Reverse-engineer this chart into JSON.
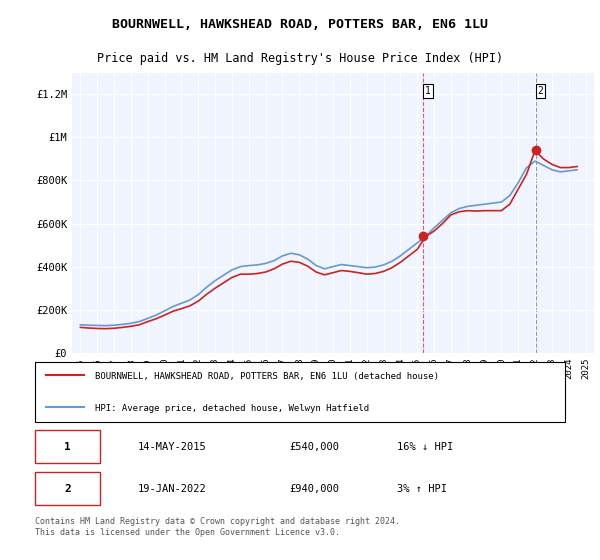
{
  "title": "BOURNWELL, HAWKSHEAD ROAD, POTTERS BAR, EN6 1LU",
  "subtitle": "Price paid vs. HM Land Registry's House Price Index (HPI)",
  "legend_line1": "BOURNWELL, HAWKSHEAD ROAD, POTTERS BAR, EN6 1LU (detached house)",
  "legend_line2": "HPI: Average price, detached house, Welwyn Hatfield",
  "annotation1": {
    "label": "1",
    "date": "14-MAY-2015",
    "price": "£540,000",
    "hpi": "16% ↓ HPI"
  },
  "annotation2": {
    "label": "2",
    "date": "19-JAN-2022",
    "price": "£940,000",
    "hpi": "3% ↑ HPI"
  },
  "footer": "Contains HM Land Registry data © Crown copyright and database right 2024.\nThis data is licensed under the Open Government Licence v3.0.",
  "hpi_color": "#6699cc",
  "price_color": "#cc2222",
  "vline_color": "#cc2222",
  "background_color": "#f0f4ff",
  "ylim": [
    0,
    1300000
  ],
  "yticks": [
    0,
    200000,
    400000,
    600000,
    800000,
    1000000,
    1200000
  ],
  "ytick_labels": [
    "£0",
    "£200K",
    "£400K",
    "£600K",
    "£800K",
    "£1M",
    "£1.2M"
  ],
  "vline1_x": 2015.37,
  "vline2_x": 2022.05,
  "point1_x": 2015.37,
  "point1_y": 540000,
  "point2_x": 2022.05,
  "point2_y": 940000,
  "hpi_years": [
    1995,
    1995.5,
    1996,
    1996.5,
    1997,
    1997.5,
    1998,
    1998.5,
    1999,
    1999.5,
    2000,
    2000.5,
    2001,
    2001.5,
    2002,
    2002.5,
    2003,
    2003.5,
    2004,
    2004.5,
    2005,
    2005.5,
    2006,
    2006.5,
    2007,
    2007.5,
    2008,
    2008.5,
    2009,
    2009.5,
    2010,
    2010.5,
    2011,
    2011.5,
    2012,
    2012.5,
    2013,
    2013.5,
    2014,
    2014.5,
    2015,
    2015.5,
    2016,
    2016.5,
    2017,
    2017.5,
    2018,
    2018.5,
    2019,
    2019.5,
    2020,
    2020.5,
    2021,
    2021.5,
    2022,
    2022.5,
    2023,
    2023.5,
    2024,
    2024.5
  ],
  "hpi_values": [
    130000,
    128000,
    127000,
    126000,
    128000,
    132000,
    137000,
    145000,
    160000,
    175000,
    195000,
    215000,
    230000,
    245000,
    270000,
    305000,
    335000,
    360000,
    385000,
    400000,
    405000,
    408000,
    415000,
    428000,
    450000,
    462000,
    455000,
    435000,
    405000,
    390000,
    400000,
    410000,
    405000,
    400000,
    395000,
    398000,
    408000,
    425000,
    450000,
    480000,
    510000,
    540000,
    580000,
    615000,
    650000,
    670000,
    680000,
    685000,
    690000,
    695000,
    700000,
    730000,
    790000,
    860000,
    890000,
    870000,
    850000,
    840000,
    845000,
    850000
  ],
  "price_years": [
    1995,
    1995.5,
    1996,
    1996.5,
    1997,
    1997.5,
    1998,
    1998.5,
    1999,
    1999.5,
    2000,
    2000.5,
    2001,
    2001.5,
    2002,
    2002.5,
    2003,
    2003.5,
    2004,
    2004.5,
    2005,
    2005.5,
    2006,
    2006.5,
    2007,
    2007.5,
    2008,
    2008.5,
    2009,
    2009.5,
    2010,
    2010.5,
    2011,
    2011.5,
    2012,
    2012.5,
    2013,
    2013.5,
    2014,
    2014.5,
    2015,
    2015.5,
    2016,
    2016.5,
    2017,
    2017.5,
    2018,
    2018.5,
    2019,
    2019.5,
    2020,
    2020.5,
    2021,
    2021.5,
    2022,
    2022.5,
    2023,
    2023.5,
    2024,
    2024.5
  ],
  "price_values": [
    118000,
    115000,
    113000,
    112000,
    114000,
    118000,
    123000,
    130000,
    145000,
    158000,
    175000,
    193000,
    205000,
    218000,
    240000,
    272000,
    300000,
    325000,
    350000,
    365000,
    365000,
    368000,
    375000,
    390000,
    412000,
    425000,
    420000,
    402000,
    375000,
    362000,
    372000,
    382000,
    378000,
    372000,
    365000,
    368000,
    378000,
    395000,
    420000,
    450000,
    480000,
    540000,
    565000,
    600000,
    640000,
    655000,
    660000,
    658000,
    660000,
    660000,
    660000,
    690000,
    760000,
    830000,
    940000,
    900000,
    875000,
    860000,
    860000,
    865000
  ],
  "xlim": [
    1994.5,
    2025.5
  ],
  "xticks": [
    1995,
    1996,
    1997,
    1998,
    1999,
    2000,
    2001,
    2002,
    2003,
    2004,
    2005,
    2006,
    2007,
    2008,
    2009,
    2010,
    2011,
    2012,
    2013,
    2014,
    2015,
    2016,
    2017,
    2018,
    2019,
    2020,
    2021,
    2022,
    2023,
    2024,
    2025
  ]
}
